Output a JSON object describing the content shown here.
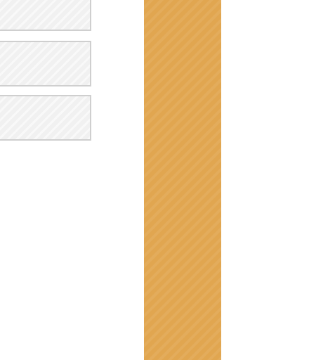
{
  "placeholders": [
    {
      "name": "placeholder-box-1"
    },
    {
      "name": "placeholder-box-2"
    },
    {
      "name": "placeholder-box-3"
    }
  ],
  "accent_bar": {
    "color": "#e1a650"
  },
  "placeholder_color": "#f1f1f1",
  "placeholder_border_color": "#cfcfcf"
}
